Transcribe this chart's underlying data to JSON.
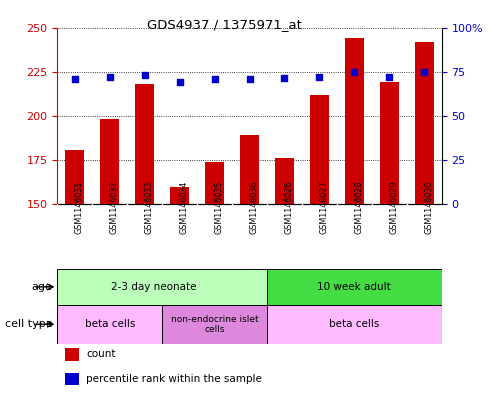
{
  "title": "GDS4937 / 1375971_at",
  "samples": [
    "GSM1146031",
    "GSM1146032",
    "GSM1146033",
    "GSM1146034",
    "GSM1146035",
    "GSM1146036",
    "GSM1146026",
    "GSM1146027",
    "GSM1146028",
    "GSM1146029",
    "GSM1146030"
  ],
  "counts": [
    181,
    198,
    218,
    160,
    174,
    189,
    176,
    212,
    244,
    219,
    242
  ],
  "percentiles": [
    71,
    72,
    73,
    69,
    71,
    71,
    71.5,
    72,
    75,
    72,
    75
  ],
  "ylim_left": [
    150,
    250
  ],
  "ylim_right": [
    0,
    100
  ],
  "yticks_left": [
    150,
    175,
    200,
    225,
    250
  ],
  "yticks_right": [
    0,
    25,
    50,
    75,
    100
  ],
  "ytick_labels_right": [
    "0",
    "25",
    "50",
    "75",
    "100%"
  ],
  "bar_color": "#cc0000",
  "dot_color": "#0000cc",
  "plot_bg": "#ffffff",
  "tick_gray_bg": "#d8d8d8",
  "age_neonate_color": "#bbffbb",
  "age_adult_color": "#44dd44",
  "cell_beta_color": "#ffbbff",
  "cell_nonendo_color": "#dd88dd",
  "tick_label_color_left": "#cc0000",
  "tick_label_color_right": "#0000cc",
  "legend_items": [
    {
      "color": "#cc0000",
      "label": "count"
    },
    {
      "color": "#0000cc",
      "label": "percentile rank within the sample"
    }
  ]
}
